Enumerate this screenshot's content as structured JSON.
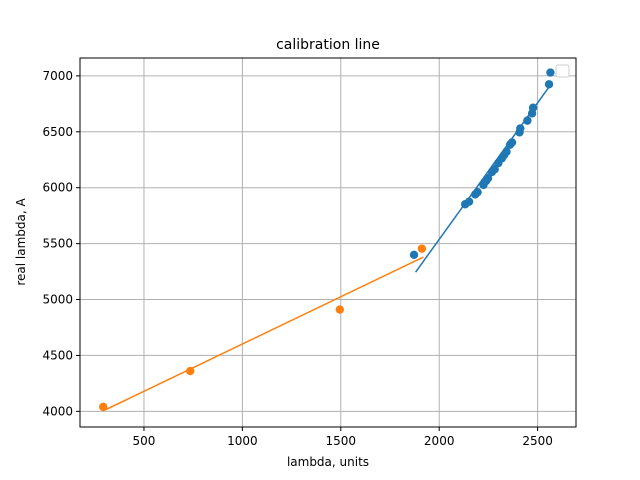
{
  "chart_data": {
    "type": "scatter",
    "title": "calibration line",
    "xlabel": "lambda, units",
    "ylabel": "real lambda, A",
    "xlim": [
      175,
      2695
    ],
    "ylim": [
      3860,
      7160
    ],
    "x_ticks": [
      500,
      1000,
      1500,
      2000,
      2500
    ],
    "y_ticks": [
      4000,
      4500,
      5000,
      5500,
      6000,
      6500,
      7000
    ],
    "grid": true,
    "legend": {
      "placement": "top-right",
      "entries": []
    },
    "series": [
      {
        "color": "#1f77b4",
        "kind": "points",
        "points": [
          [
            1872,
            5400
          ],
          [
            2132,
            5852
          ],
          [
            2152,
            5875
          ],
          [
            2183,
            5940
          ],
          [
            2195,
            5960
          ],
          [
            2225,
            6025
          ],
          [
            2238,
            6060
          ],
          [
            2248,
            6085
          ],
          [
            2268,
            6140
          ],
          [
            2282,
            6165
          ],
          [
            2300,
            6220
          ],
          [
            2318,
            6262
          ],
          [
            2330,
            6292
          ],
          [
            2342,
            6322
          ],
          [
            2360,
            6385
          ],
          [
            2370,
            6405
          ],
          [
            2408,
            6495
          ],
          [
            2412,
            6530
          ],
          [
            2448,
            6600
          ],
          [
            2472,
            6665
          ],
          [
            2477,
            6715
          ],
          [
            2558,
            6925
          ],
          [
            2565,
            7030
          ]
        ]
      },
      {
        "color": "#1f77b4",
        "kind": "line",
        "points": [
          [
            1880,
            5245
          ],
          [
            2570,
            6930
          ]
        ]
      },
      {
        "color": "#ff7f0e",
        "kind": "points",
        "points": [
          [
            293,
            4040
          ],
          [
            735,
            4360
          ],
          [
            1495,
            4910
          ],
          [
            1912,
            5455
          ]
        ]
      },
      {
        "color": "#ff7f0e",
        "kind": "line",
        "points": [
          [
            300,
            4010
          ],
          [
            1920,
            5380
          ]
        ]
      }
    ]
  }
}
